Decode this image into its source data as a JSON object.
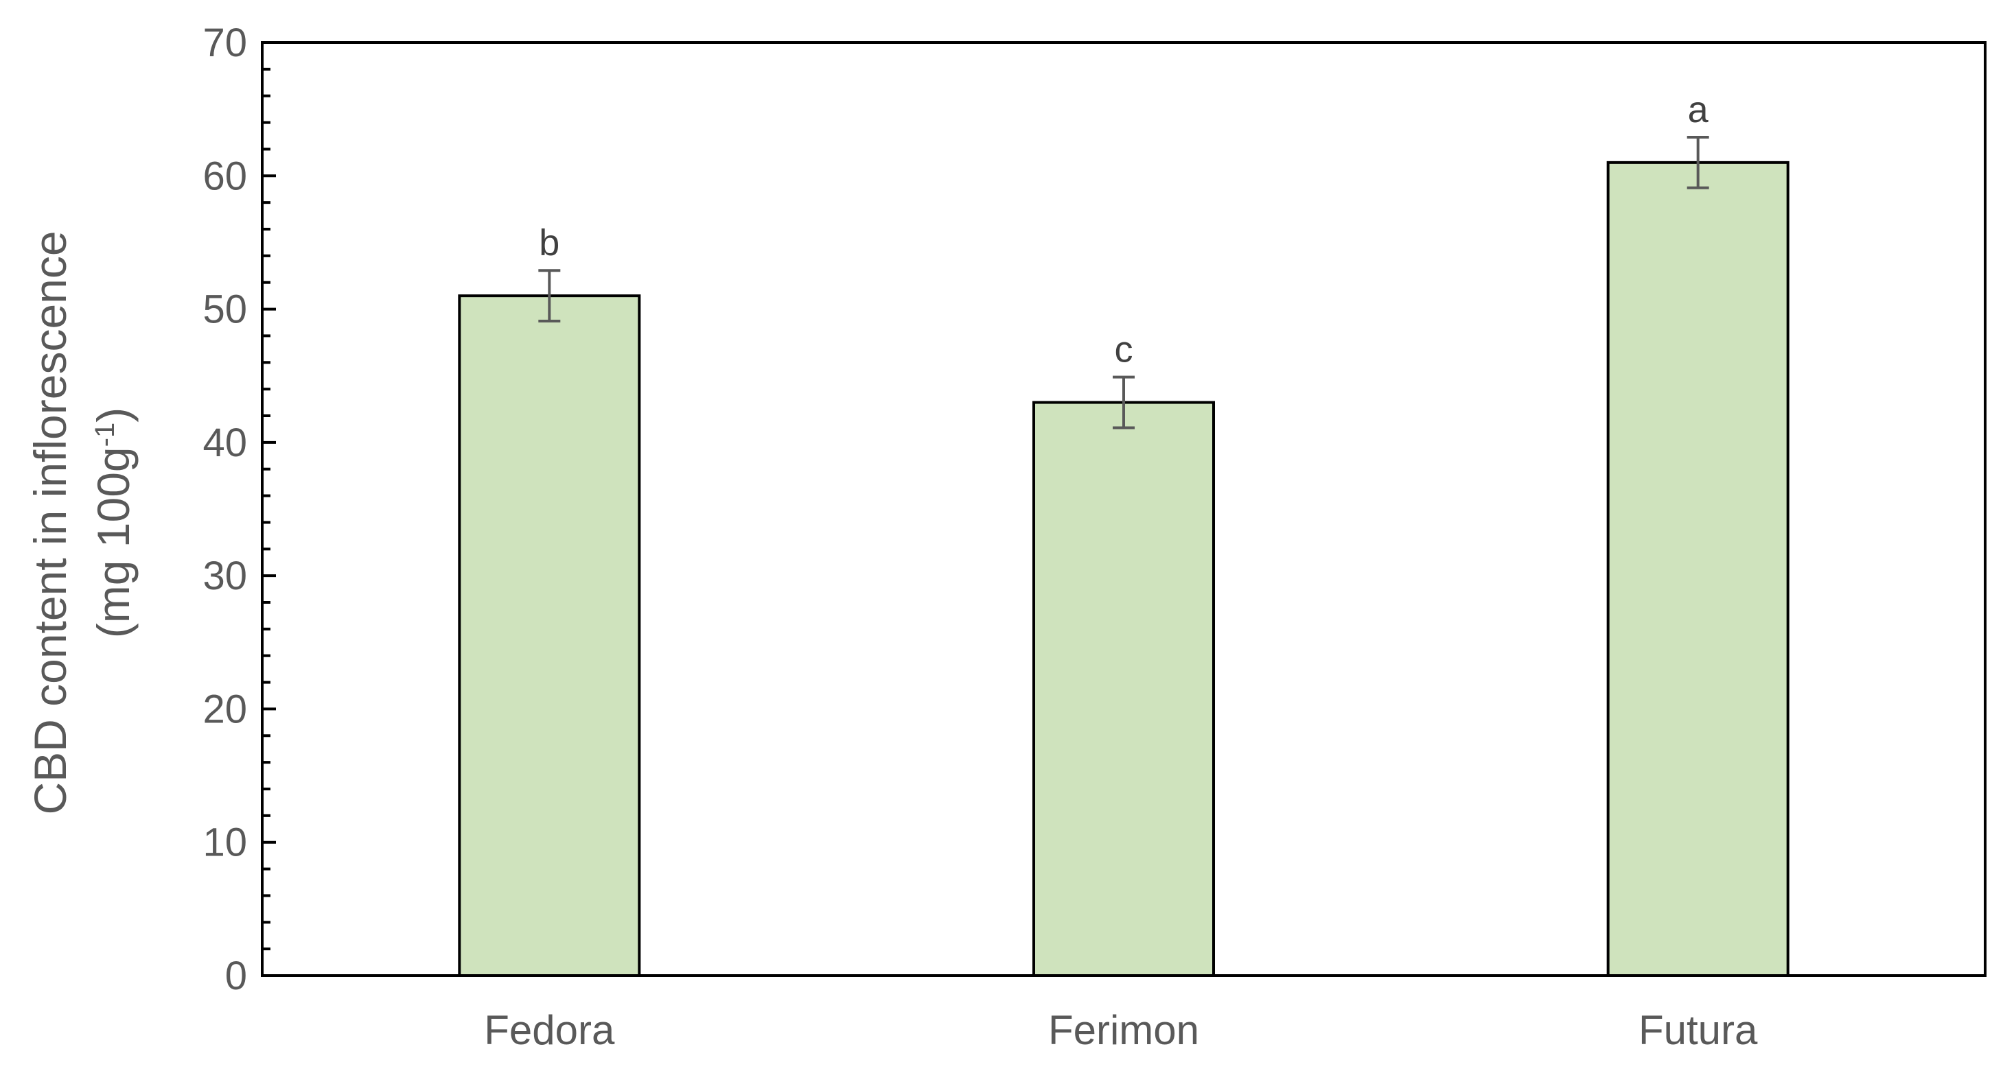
{
  "chart_data": {
    "type": "bar",
    "categories": [
      "Fedora",
      "Ferimon",
      "Futura"
    ],
    "values": [
      51,
      43,
      61
    ],
    "errors": [
      1.9,
      1.9,
      1.9
    ],
    "significance_letters": [
      "b",
      "c",
      "a"
    ],
    "ylabel_line1": "CBD content in inflorescence",
    "ylabel_line2_prefix": "(mg 100g",
    "ylabel_line2_sup": "-1",
    "ylabel_line2_suffix": ")",
    "ylim": [
      0,
      70
    ],
    "yticks": [
      0,
      10,
      20,
      30,
      40,
      50,
      60,
      70
    ],
    "grid": false,
    "legend": "none",
    "colors": {
      "bar_fill": "#cfe3bd",
      "bar_stroke": "#000000",
      "error_bar": "#595959",
      "axis": "#000000",
      "text": "#595959"
    }
  }
}
